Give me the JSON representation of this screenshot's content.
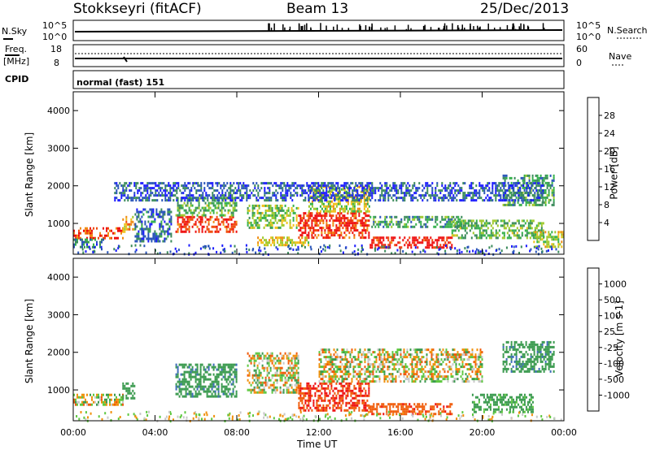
{
  "header": {
    "station": "Stokkseyri (fitACF)",
    "beam": "Beam 13",
    "date": "25/Dec/2013"
  },
  "top_panels": {
    "nsky_label": "N.Sky",
    "nsky_ticks": [
      "10^5",
      "10^0"
    ],
    "nsearch_label": "N.Search",
    "nsearch_ticks": [
      "10^5",
      "10^0"
    ],
    "freq_label_1": "Freq.",
    "freq_label_2": "[MHz]",
    "freq_ticks": [
      "18",
      "8"
    ],
    "nave_label": "Nave",
    "nave_ticks": [
      "60",
      "0"
    ],
    "cpid_label": "CPID",
    "cpid_value": "normal (fast) 151"
  },
  "colors": {
    "power": [
      "#1a1aff",
      "#2854b8",
      "#3a8a5a",
      "#33b04a",
      "#9ec82a",
      "#f0c01a",
      "#f08a10",
      "#f04a0a",
      "#ee1010"
    ],
    "velocity": [
      "#ee1010",
      "#f05a08",
      "#f0900c",
      "#c8c8c8",
      "#c8c8c8",
      "#5ec840",
      "#3a9a4e",
      "#3c6cb8",
      "#1a2ea6"
    ],
    "ground": "#a0a0a0"
  },
  "chart_data": [
    {
      "type": "heatmap",
      "name": "power",
      "ylabel": "Slant Range [km]",
      "xlabel": "",
      "xlim": [
        0,
        24
      ],
      "ylim": [
        180,
        4500
      ],
      "x_ticks": [
        "00:00",
        "04:00",
        "08:00",
        "12:00",
        "16:00",
        "20:00",
        "00:00"
      ],
      "y_ticks": [
        1000,
        2000,
        3000,
        4000
      ],
      "colorbar_label": "Power [dB]",
      "colorbar_ticks": [
        "28",
        "24",
        "20",
        "16",
        "12",
        "8",
        "4"
      ],
      "colorbar_range": [
        0,
        30
      ],
      "regions": [
        {
          "t0": 0.0,
          "t1": 2.4,
          "r0": 600,
          "r1": 900,
          "level": 26
        },
        {
          "t0": 0.0,
          "t1": 1.5,
          "r0": 380,
          "r1": 600,
          "level": 8
        },
        {
          "t0": 2.4,
          "t1": 3.0,
          "r0": 800,
          "r1": 1200,
          "level": 20
        },
        {
          "t0": 3.0,
          "t1": 4.8,
          "r0": 500,
          "r1": 1400,
          "level": 6
        },
        {
          "t0": 5.0,
          "t1": 8.0,
          "r0": 800,
          "r1": 1200,
          "level": 27
        },
        {
          "t0": 5.0,
          "t1": 8.0,
          "r0": 1200,
          "r1": 1700,
          "level": 12
        },
        {
          "t0": 8.5,
          "t1": 11.0,
          "r0": 900,
          "r1": 1500,
          "level": 14
        },
        {
          "t0": 9.0,
          "t1": 11.5,
          "r0": 400,
          "r1": 650,
          "level": 18
        },
        {
          "t0": 11.0,
          "t1": 14.5,
          "r0": 600,
          "r1": 1300,
          "level": 27
        },
        {
          "t0": 11.5,
          "t1": 14.5,
          "r0": 1300,
          "r1": 2000,
          "level": 16
        },
        {
          "t0": 14.5,
          "t1": 18.5,
          "r0": 350,
          "r1": 650,
          "level": 28
        },
        {
          "t0": 14.5,
          "t1": 19.0,
          "r0": 900,
          "r1": 1200,
          "level": 10
        },
        {
          "t0": 18.5,
          "t1": 23.0,
          "r0": 600,
          "r1": 1100,
          "level": 12
        },
        {
          "t0": 21.0,
          "t1": 23.5,
          "r0": 1500,
          "r1": 2300,
          "level": 10
        },
        {
          "t0": 22.5,
          "t1": 24.0,
          "r0": 400,
          "r1": 800,
          "level": 16
        },
        {
          "t0": 2.0,
          "t1": 23.0,
          "r0": 1600,
          "r1": 2100,
          "level": 5
        }
      ]
    },
    {
      "type": "heatmap",
      "name": "velocity",
      "ylabel": "Slant Range [km]",
      "xlabel": "Time UT",
      "xlim": [
        0,
        24
      ],
      "ylim": [
        180,
        4500
      ],
      "x_ticks": [
        "00:00",
        "04:00",
        "08:00",
        "12:00",
        "16:00",
        "20:00",
        "00:00"
      ],
      "y_ticks": [
        1000,
        2000,
        3000,
        4000
      ],
      "colorbar_label": "Velocity [m s-1]",
      "colorbar_ticks": [
        "1000",
        "500",
        "100",
        "25",
        "-25",
        "-100",
        "-500",
        "-1000"
      ],
      "colorbar_range": [
        -1000,
        1000
      ],
      "regions": [
        {
          "t0": 0.0,
          "t1": 2.4,
          "r0": 600,
          "r1": 900,
          "level": 0
        },
        {
          "t0": 2.4,
          "t1": 3.0,
          "r0": 800,
          "r1": 1200,
          "level": 300
        },
        {
          "t0": 5.0,
          "t1": 8.0,
          "r0": 800,
          "r1": 1700,
          "level": 400
        },
        {
          "t0": 8.5,
          "t1": 11.0,
          "r0": 900,
          "r1": 2000,
          "level": 0
        },
        {
          "t0": 11.0,
          "t1": 14.5,
          "r0": 450,
          "r1": 1200,
          "level": -500
        },
        {
          "t0": 14.5,
          "t1": 18.5,
          "r0": 350,
          "r1": 650,
          "level": -400
        },
        {
          "t0": 12.0,
          "t1": 20.0,
          "r0": 1200,
          "r1": 2100,
          "level": 0
        },
        {
          "t0": 19.5,
          "t1": 22.5,
          "r0": 400,
          "r1": 900,
          "level": 200
        },
        {
          "t0": 21.0,
          "t1": 23.5,
          "r0": 1500,
          "r1": 2300,
          "level": 400
        }
      ]
    }
  ]
}
